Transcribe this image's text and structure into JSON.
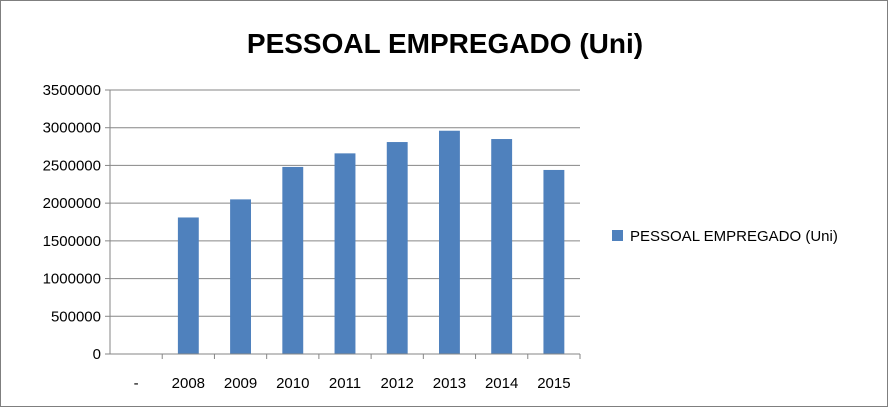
{
  "chart_data": {
    "type": "bar",
    "title": "PESSOAL EMPREGADO (Uni)",
    "xlabel": "",
    "ylabel": "",
    "categories": [
      "-",
      "2008",
      "2009",
      "2010",
      "2011",
      "2012",
      "2013",
      "2014",
      "2015"
    ],
    "series": [
      {
        "name": "PESSOAL EMPREGADO (Uni)",
        "values": [
          0,
          1810000,
          2050000,
          2480000,
          2660000,
          2810000,
          2960000,
          2850000,
          2440000
        ],
        "color": "#4f81bd"
      }
    ],
    "ylim": [
      0,
      3500000
    ],
    "yticks": [
      "0",
      "500000",
      "1000000",
      "1500000",
      "2000000",
      "2500000",
      "3000000",
      "3500000"
    ],
    "grid": true,
    "legend_position": "right"
  }
}
